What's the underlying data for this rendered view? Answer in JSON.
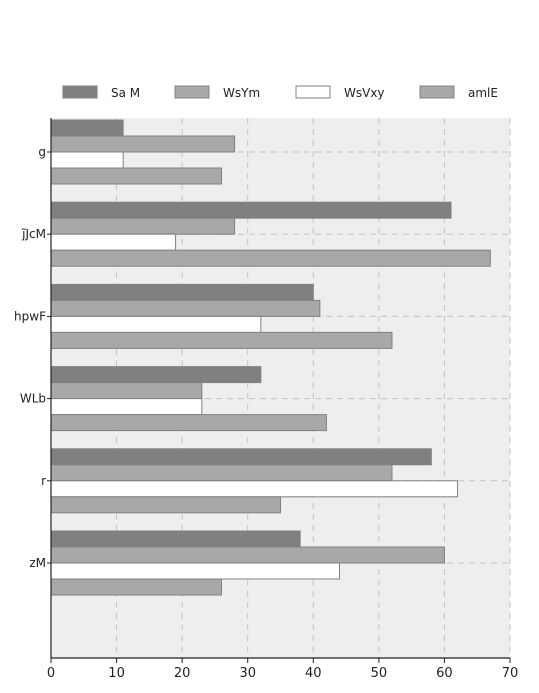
{
  "chart_data": {
    "type": "bar",
    "orientation": "horizontal",
    "categories": [
      "g",
      "j̃JcM",
      "hpwF",
      "WLb",
      "r",
      "zM"
    ],
    "series": [
      {
        "name": "Sa M",
        "color": "#808080",
        "values": [
          11,
          61,
          40,
          32,
          58,
          38
        ]
      },
      {
        "name": "WsYm",
        "color": "#a8a8a8",
        "values": [
          28,
          28,
          41,
          23,
          52,
          60
        ]
      },
      {
        "name": "WsVxy",
        "color": "#ffffff",
        "values": [
          11,
          19,
          32,
          23,
          62,
          44
        ]
      },
      {
        "name": "amlE",
        "color": "#a8a8a8",
        "values": [
          26,
          67,
          52,
          42,
          35,
          26
        ]
      }
    ],
    "x_ticks": [
      0,
      10,
      20,
      30,
      40,
      50,
      60,
      70
    ],
    "xlim": [
      0,
      70
    ],
    "grid": true,
    "legend_position": "top",
    "plot_background": "#eeeeee",
    "bar_edge_color": "#808080"
  }
}
